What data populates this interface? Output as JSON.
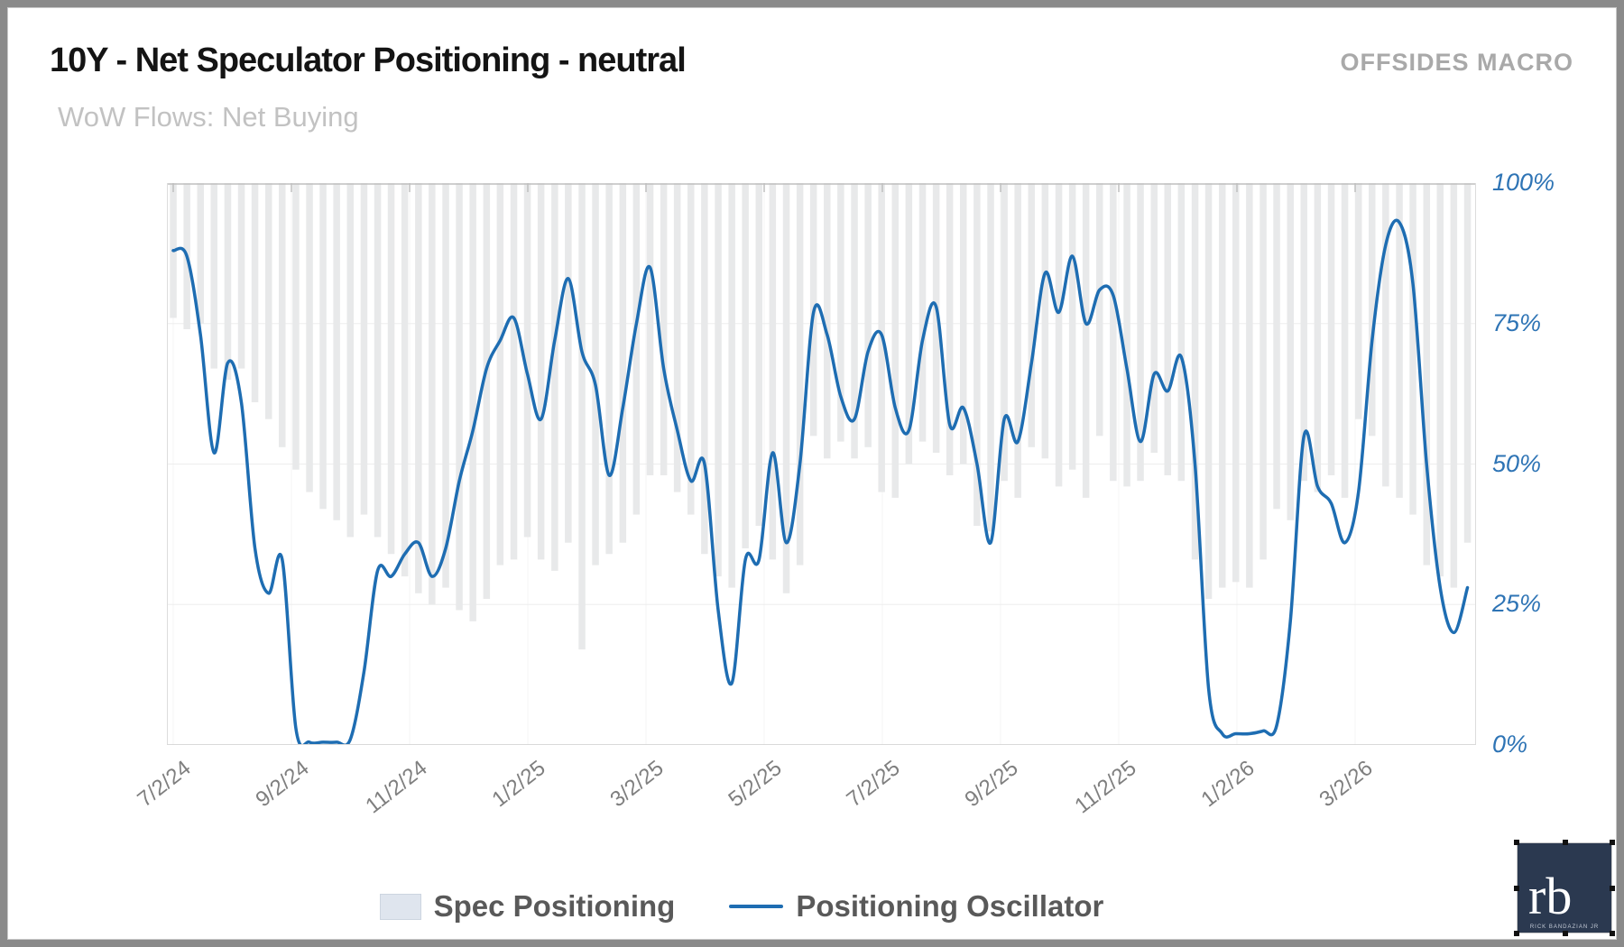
{
  "header": {
    "title": "10Y - Net Speculator Positioning - neutral",
    "brand": "OFFSIDES MACRO",
    "subtitle": "WoW Flows: Net Buying"
  },
  "chart_data": {
    "type": "combo-bar-line",
    "title": "10Y - Net Speculator Positioning - neutral",
    "subtitle": "WoW Flows: Net Buying",
    "x_unit": "weekly",
    "x_start": "7/2/24",
    "x_tick_labels": [
      "7/2/24",
      "9/2/24",
      "11/2/24",
      "1/2/25",
      "3/2/25",
      "5/2/25",
      "7/2/25",
      "9/2/25",
      "11/2/25",
      "1/2/26",
      "3/2/26"
    ],
    "y_tick_labels": [
      "0%",
      "25%",
      "50%",
      "75%",
      "100%"
    ],
    "ylim": [
      0,
      100
    ],
    "grid": "faint horizontal at 25% steps and vertical at date ticks",
    "legend_position": "bottom",
    "series": [
      {
        "name": "Spec Positioning",
        "type": "bar",
        "style": "bars hang from 100% down to value",
        "color": "#e8e9ea",
        "values": [
          76,
          74,
          75,
          67,
          65,
          67,
          61,
          58,
          53,
          49,
          45,
          42,
          40,
          37,
          41,
          37,
          34,
          30,
          27,
          25,
          28,
          24,
          22,
          26,
          32,
          33,
          37,
          33,
          31,
          36,
          17,
          32,
          34,
          36,
          41,
          48,
          48,
          45,
          41,
          34,
          30,
          28,
          35,
          39,
          33,
          27,
          32,
          55,
          51,
          54,
          51,
          53,
          45,
          44,
          50,
          54,
          52,
          48,
          50,
          39,
          38,
          47,
          44,
          53,
          51,
          46,
          49,
          44,
          55,
          47,
          46,
          47,
          52,
          48,
          47,
          33,
          26,
          28,
          29,
          28,
          33,
          42,
          40,
          47,
          45,
          48,
          44,
          58,
          55,
          46,
          44,
          41,
          32,
          30,
          28,
          36
        ]
      },
      {
        "name": "Positioning Oscillator",
        "type": "line",
        "color": "#1e6db2",
        "values": [
          88,
          87,
          73,
          52,
          68,
          61,
          35,
          27,
          33,
          3,
          0.5,
          0.5,
          0.5,
          1,
          13,
          31,
          30,
          34,
          36,
          30,
          35,
          47,
          56,
          67,
          72,
          76,
          66,
          58,
          72,
          83,
          70,
          64,
          48,
          60,
          75,
          85,
          67,
          56,
          47,
          50,
          24,
          11,
          33,
          33,
          52,
          36,
          50,
          77,
          73,
          62,
          58,
          70,
          73,
          60,
          56,
          72,
          78,
          57,
          60,
          50,
          36,
          58,
          54,
          68,
          84,
          77,
          87,
          75,
          81,
          80,
          67,
          54,
          66,
          63,
          69,
          50,
          10,
          2,
          2,
          2,
          2.5,
          3.5,
          22,
          55,
          46,
          43,
          36,
          45,
          72,
          89,
          93,
          82,
          50,
          28,
          20,
          28
        ]
      }
    ]
  },
  "legend": {
    "items": [
      {
        "label": "Spec Positioning",
        "swatch": "bar"
      },
      {
        "label": "Positioning Oscillator",
        "swatch": "line"
      }
    ]
  },
  "colors": {
    "accent_line": "#1e6db2",
    "bar_fill": "#e8e9ea",
    "axis_label_blue": "#2e74b5",
    "date_label_gray": "#7f7f7f",
    "frame_gray": "#8a8a8a"
  },
  "logo": {
    "text": "rb",
    "subtext": "RICK BANDAZIAN JR"
  }
}
